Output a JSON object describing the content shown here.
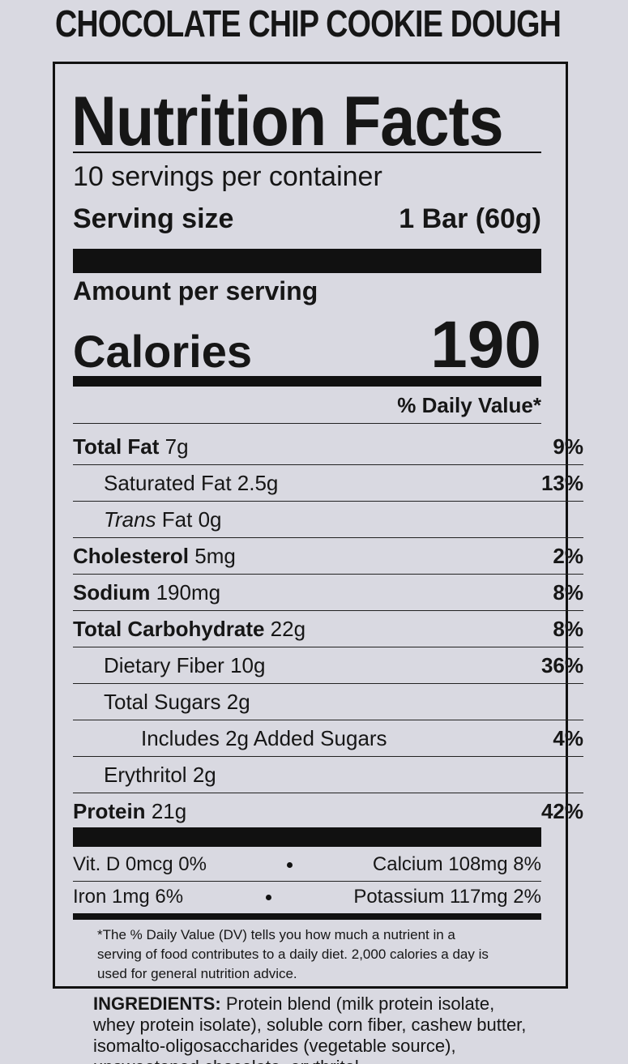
{
  "product_name": "CHOCOLATE CHIP COOKIE DOUGH",
  "label": {
    "title": "Nutrition Facts",
    "servings": "10 servings per container",
    "serving_size": {
      "label": "Serving size",
      "value": "1 Bar (60g)"
    },
    "amount_per_serving": "Amount per serving",
    "calories": {
      "label": "Calories",
      "value": "190"
    },
    "dv_header": "% Daily Value*",
    "nutrients": [
      {
        "name": "Total Fat",
        "amount": "7g",
        "dv": "9%"
      },
      {
        "name": "Saturated Fat",
        "amount": "2.5g",
        "dv": "13%"
      },
      {
        "name_italic": "Trans",
        "name": "Fat",
        "amount": "0g"
      },
      {
        "name": "Cholesterol",
        "amount": "5mg",
        "dv": "2%"
      },
      {
        "name": "Sodium",
        "amount": "190mg",
        "dv": "8%"
      },
      {
        "name": "Total Carbohydrate",
        "amount": "22g",
        "dv": "8%"
      },
      {
        "name": "Dietary Fiber",
        "amount": "10g",
        "dv": "36%"
      },
      {
        "name": "Total Sugars",
        "amount": "2g"
      },
      {
        "name": "Includes 2g Added Sugars",
        "dv": "4%"
      },
      {
        "name": "Erythritol",
        "amount": "2g"
      },
      {
        "name": "Protein",
        "amount": "21g",
        "dv": "42%"
      }
    ],
    "micronutrients": [
      [
        "Vit. D 0mcg 0%",
        "Calcium 108mg 8%"
      ],
      [
        "Iron 1mg 6%",
        "Potassium 117mg 2%"
      ]
    ],
    "footnote": "*The % Daily Value (DV) tells you how much a nutrient in a serving of food contributes to a daily diet. 2,000 calories a day is used for general nutrition advice."
  },
  "ingredients": {
    "label": "INGREDIENTS:",
    "text": "Protein blend (milk protein isolate, whey protein isolate), soluble corn fiber, cashew butter, isomalto-oligosaccharides (vegetable source), unsweetened chocolate, erythritol"
  }
}
